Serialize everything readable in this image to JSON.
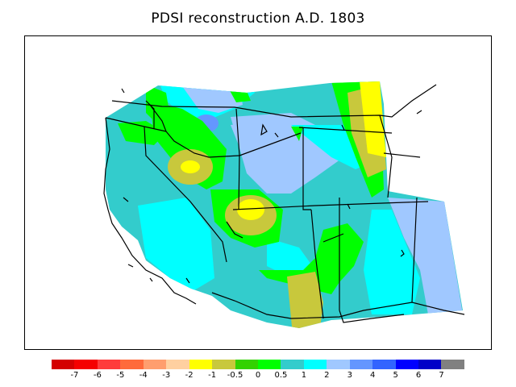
{
  "title": "PDSI reconstruction A.D. 1803",
  "legend": {
    "colors": [
      "#d40000",
      "#f50000",
      "#ff3b3b",
      "#ff6a3a",
      "#ff9e6e",
      "#ffd0a0",
      "#ffff00",
      "#c8c83c",
      "#32d200",
      "#00ff00",
      "#33cccc",
      "#00ffff",
      "#a0c8ff",
      "#6496ff",
      "#3264ff",
      "#0000ff",
      "#0000c8",
      "#808080"
    ],
    "tick_labels": [
      "-7",
      "-6",
      "-5",
      "-4",
      "-3",
      "-2",
      "-1",
      "-0.5",
      "0",
      "0.5",
      "1",
      "2",
      "3",
      "4",
      "5",
      "6",
      "7"
    ]
  }
}
